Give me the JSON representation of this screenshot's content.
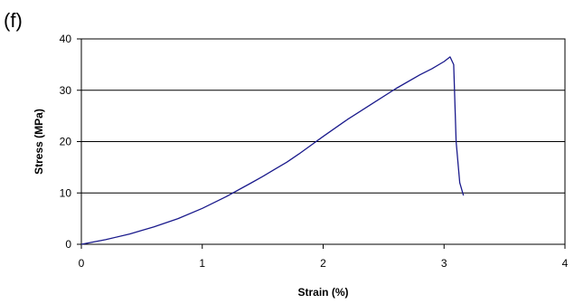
{
  "panel_label": "(f)",
  "chart_data": {
    "type": "line",
    "xlabel": "Strain (%)",
    "ylabel": "Stress (MPa)",
    "xlim": [
      0,
      4
    ],
    "ylim": [
      0,
      40
    ],
    "xticks": [
      "0",
      "1",
      "2",
      "3",
      "4"
    ],
    "yticks": [
      "0",
      "10",
      "20",
      "30",
      "40"
    ],
    "grid": "horizontal",
    "legend": "none",
    "colors": {
      "series": "#1a1a8c",
      "grid": "#000000",
      "axis": "#000000"
    },
    "series": [
      {
        "x": [
          0,
          0.2,
          0.4,
          0.6,
          0.8,
          1.0,
          1.2,
          1.4,
          1.5,
          1.6,
          1.7,
          1.8,
          1.9,
          2.0,
          2.2,
          2.4,
          2.6,
          2.8,
          2.9,
          3.0,
          3.05,
          3.08,
          3.1,
          3.13,
          3.16
        ],
        "y": [
          0,
          0.9,
          2.0,
          3.4,
          5.0,
          7.0,
          9.3,
          11.9,
          13.2,
          14.6,
          16.0,
          17.6,
          19.3,
          21.0,
          24.3,
          27.3,
          30.3,
          33.0,
          34.2,
          35.6,
          36.5,
          35.0,
          20.0,
          12.0,
          9.5
        ]
      }
    ]
  }
}
